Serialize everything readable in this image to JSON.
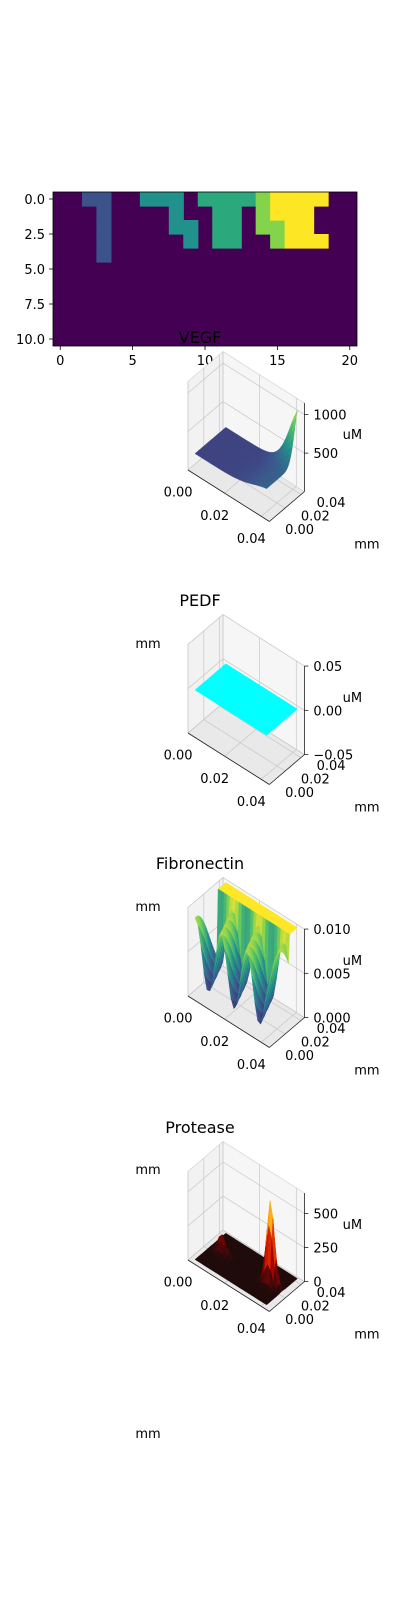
{
  "chart_data": [
    {
      "type": "heatmap",
      "title": "",
      "x_ticks": [
        "0",
        "5",
        "10",
        "15",
        "20"
      ],
      "y_ticks": [
        "0.0",
        "2.5",
        "5.0",
        "7.5",
        "10.0"
      ],
      "xlim": [
        -0.5,
        20.5
      ],
      "ylim": [
        10.5,
        -0.5
      ],
      "colormap": "viridis",
      "background_color": "#440154",
      "cells": [
        {
          "x": 2,
          "y": 0,
          "color": "#3b528b"
        },
        {
          "x": 3,
          "y": 0,
          "color": "#3b528b"
        },
        {
          "x": 3,
          "y": 1,
          "color": "#3b528b"
        },
        {
          "x": 3,
          "y": 2,
          "color": "#3b528b"
        },
        {
          "x": 3,
          "y": 3,
          "color": "#3b528b"
        },
        {
          "x": 3,
          "y": 4,
          "color": "#3b528b"
        },
        {
          "x": 6,
          "y": 0,
          "color": "#21918c"
        },
        {
          "x": 7,
          "y": 0,
          "color": "#21918c"
        },
        {
          "x": 8,
          "y": 0,
          "color": "#21918c"
        },
        {
          "x": 8,
          "y": 1,
          "color": "#21918c"
        },
        {
          "x": 8,
          "y": 2,
          "color": "#21918c"
        },
        {
          "x": 9,
          "y": 2,
          "color": "#21918c"
        },
        {
          "x": 9,
          "y": 3,
          "color": "#21918c"
        },
        {
          "x": 10,
          "y": 0,
          "color": "#2ca87d"
        },
        {
          "x": 11,
          "y": 0,
          "color": "#2ca87d"
        },
        {
          "x": 12,
          "y": 0,
          "color": "#2ca87d"
        },
        {
          "x": 13,
          "y": 0,
          "color": "#2ca87d"
        },
        {
          "x": 11,
          "y": 1,
          "color": "#2ca87d"
        },
        {
          "x": 12,
          "y": 1,
          "color": "#2ca87d"
        },
        {
          "x": 11,
          "y": 2,
          "color": "#2ca87d"
        },
        {
          "x": 12,
          "y": 2,
          "color": "#2ca87d"
        },
        {
          "x": 11,
          "y": 3,
          "color": "#2ca87d"
        },
        {
          "x": 12,
          "y": 3,
          "color": "#2ca87d"
        },
        {
          "x": 14,
          "y": 0,
          "color": "#84d44b"
        },
        {
          "x": 14,
          "y": 1,
          "color": "#84d44b"
        },
        {
          "x": 14,
          "y": 2,
          "color": "#84d44b"
        },
        {
          "x": 15,
          "y": 2,
          "color": "#84d44b"
        },
        {
          "x": 15,
          "y": 3,
          "color": "#84d44b"
        },
        {
          "x": 15,
          "y": 0,
          "color": "#fde725"
        },
        {
          "x": 16,
          "y": 0,
          "color": "#fde725"
        },
        {
          "x": 17,
          "y": 0,
          "color": "#fde725"
        },
        {
          "x": 18,
          "y": 0,
          "color": "#fde725"
        },
        {
          "x": 15,
          "y": 1,
          "color": "#fde725"
        },
        {
          "x": 16,
          "y": 1,
          "color": "#fde725"
        },
        {
          "x": 17,
          "y": 1,
          "color": "#fde725"
        },
        {
          "x": 16,
          "y": 2,
          "color": "#fde725"
        },
        {
          "x": 17,
          "y": 2,
          "color": "#fde725"
        },
        {
          "x": 16,
          "y": 3,
          "color": "#fde725"
        },
        {
          "x": 17,
          "y": 3,
          "color": "#fde725"
        },
        {
          "x": 18,
          "y": 3,
          "color": "#fde725"
        }
      ]
    },
    {
      "type": "surface",
      "title": "VEGF",
      "xlabel": "mm",
      "ylabel": "mm",
      "zlabel": "uM",
      "x_ticks": [
        "0.00",
        "0.02",
        "0.04"
      ],
      "y_ticks": [
        "0.00",
        "0.02",
        "0.04"
      ],
      "z_ticks": [
        "500",
        "1000"
      ],
      "zlim": [
        0,
        1150
      ],
      "colormap": "viridis",
      "description_values": {
        "baseline": 250,
        "peak": 1050,
        "peak_location_mm": [
          0.045,
          0.045
        ]
      }
    },
    {
      "type": "surface",
      "title": "PEDF",
      "xlabel": "mm",
      "ylabel": "mm",
      "zlabel": "uM",
      "x_ticks": [
        "0.00",
        "0.02",
        "0.04"
      ],
      "y_ticks": [
        "0.00",
        "0.02",
        "0.04"
      ],
      "z_ticks": [
        "−0.05",
        "0.00",
        "0.05"
      ],
      "zlim": [
        -0.05,
        0.05
      ],
      "colormap": "cyan",
      "description_values": {
        "value": 0.0
      }
    },
    {
      "type": "surface",
      "title": "Fibronectin",
      "xlabel": "mm",
      "ylabel": "mm",
      "zlabel": "uM",
      "x_ticks": [
        "0.00",
        "0.02",
        "0.04"
      ],
      "y_ticks": [
        "0.00",
        "0.02",
        "0.04"
      ],
      "z_ticks": [
        "0.000",
        "0.005",
        "0.010"
      ],
      "zlim": [
        0,
        0.01
      ],
      "colormap": "viridis",
      "description_values": {
        "plateau": 0.01,
        "trough": 0.0
      }
    },
    {
      "type": "surface",
      "title": "Protease",
      "xlabel": "mm",
      "ylabel": "mm",
      "zlabel": "uM",
      "x_ticks": [
        "0.00",
        "0.02",
        "0.04"
      ],
      "y_ticks": [
        "0.00",
        "0.02",
        "0.04"
      ],
      "z_ticks": [
        "0",
        "250",
        "500"
      ],
      "zlim": [
        0,
        650
      ],
      "colormap": "hot",
      "description_values": {
        "baseline": 0,
        "peak": 600
      }
    }
  ]
}
